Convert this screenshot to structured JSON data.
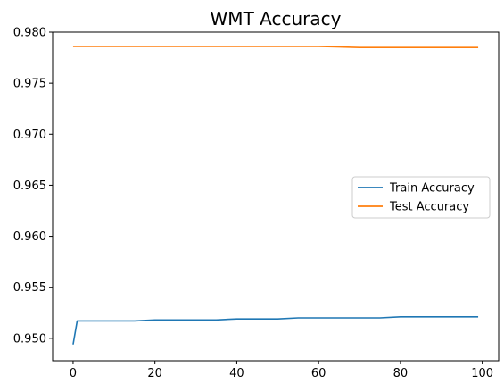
{
  "chart_data": {
    "type": "line",
    "title": "WMT Accuracy",
    "xlabel": "",
    "ylabel": "",
    "xlim": [
      -5,
      104
    ],
    "ylim": [
      0.9478,
      0.98
    ],
    "x_ticks": [
      0,
      20,
      40,
      60,
      80,
      100
    ],
    "y_ticks": [
      0.95,
      0.955,
      0.96,
      0.965,
      0.97,
      0.975,
      0.98
    ],
    "x_tick_labels": [
      "0",
      "20",
      "40",
      "60",
      "80",
      "100"
    ],
    "y_tick_labels": [
      "0.950",
      "0.955",
      "0.960",
      "0.965",
      "0.970",
      "0.975",
      "0.980"
    ],
    "grid": false,
    "legend_position": "center-right",
    "series": [
      {
        "name": "Train Accuracy",
        "color": "#1f77b4",
        "x": [
          0,
          1,
          5,
          10,
          15,
          20,
          25,
          30,
          35,
          40,
          45,
          50,
          55,
          60,
          65,
          70,
          75,
          80,
          85,
          90,
          95,
          99
        ],
        "y": [
          0.9494,
          0.9517,
          0.9517,
          0.9517,
          0.9517,
          0.9518,
          0.9518,
          0.9518,
          0.9518,
          0.9519,
          0.9519,
          0.9519,
          0.952,
          0.952,
          0.952,
          0.952,
          0.952,
          0.9521,
          0.9521,
          0.9521,
          0.9521,
          0.9521
        ]
      },
      {
        "name": "Test Accuracy",
        "color": "#ff7f0e",
        "x": [
          0,
          10,
          20,
          30,
          40,
          50,
          60,
          70,
          75,
          80,
          85,
          90,
          95,
          99
        ],
        "y": [
          0.9786,
          0.9786,
          0.9786,
          0.9786,
          0.9786,
          0.9786,
          0.9786,
          0.9785,
          0.9785,
          0.9785,
          0.9785,
          0.9785,
          0.9785,
          0.9785
        ]
      }
    ]
  }
}
